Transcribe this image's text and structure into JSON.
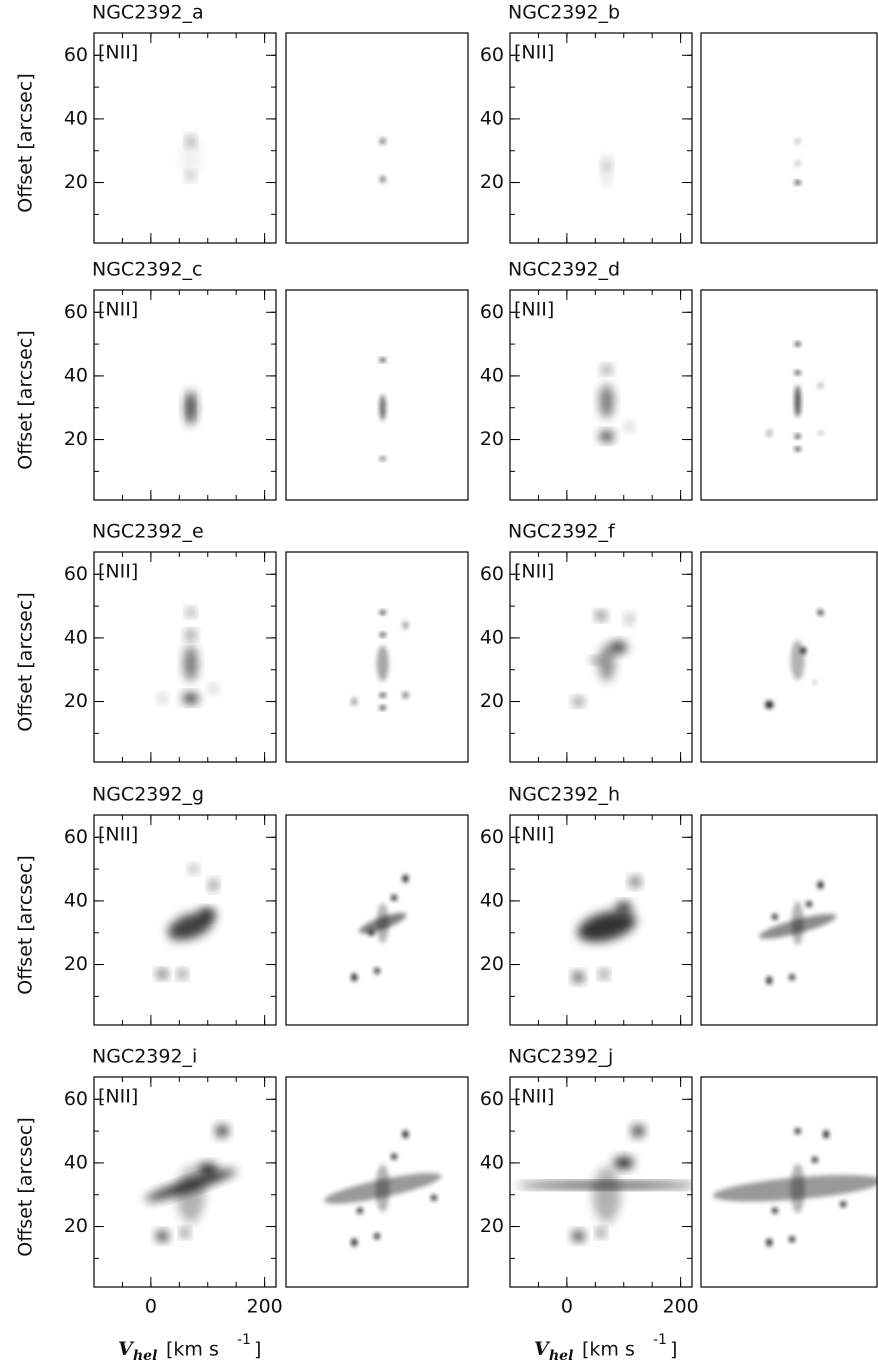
{
  "figure": {
    "panels": [
      "NGC2392_a",
      "NGC2392_b",
      "NGC2392_c",
      "NGC2392_d",
      "NGC2392_e",
      "NGC2392_f",
      "NGC2392_g",
      "NGC2392_h",
      "NGC2392_i",
      "NGC2392_j"
    ],
    "line_label": "[NII]",
    "y_label": "Offset [arcsec]",
    "x_label": {
      "symbol": "V",
      "subscript": "hel",
      "unit": "[km s",
      "exponent": "-1",
      "close": "]"
    },
    "xlim": [
      -100,
      220
    ],
    "ylim": [
      1,
      67
    ],
    "xticks": [
      0,
      200
    ],
    "yticks": [
      20,
      40,
      60
    ]
  }
}
